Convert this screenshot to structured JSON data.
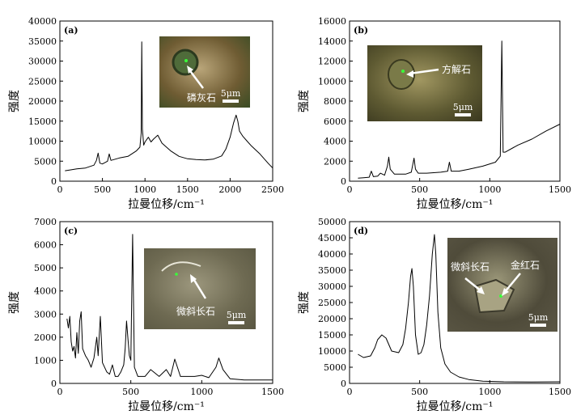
{
  "chart_data": [
    {
      "type": "line",
      "panel_label": "(a)",
      "xlabel": "拉曼位移/cm⁻¹",
      "ylabel": "强度",
      "xlim": [
        0,
        2500
      ],
      "ylim": [
        0,
        40000
      ],
      "xticks": [
        0,
        500,
        1000,
        1500,
        2000,
        2500
      ],
      "yticks": [
        0,
        5000,
        10000,
        15000,
        20000,
        25000,
        30000,
        35000,
        40000
      ],
      "inset": {
        "labels": [
          "磷灰石"
        ],
        "scale_bar": "5μm"
      },
      "x": [
        60,
        120,
        200,
        300,
        400,
        430,
        450,
        470,
        500,
        560,
        580,
        600,
        700,
        800,
        900,
        940,
        955,
        962,
        970,
        985,
        1000,
        1040,
        1070,
        1100,
        1150,
        1200,
        1300,
        1400,
        1500,
        1600,
        1700,
        1800,
        1900,
        1950,
        2000,
        2040,
        2070,
        2090,
        2110,
        2150,
        2200,
        2250,
        2300,
        2350,
        2400,
        2450,
        2500
      ],
      "y": [
        2600,
        2800,
        3100,
        3300,
        4000,
        5200,
        7000,
        4500,
        4300,
        5000,
        6800,
        5200,
        5800,
        6200,
        7600,
        8500,
        12000,
        34800,
        13000,
        9000,
        9800,
        11000,
        9800,
        10500,
        11500,
        9500,
        7600,
        6200,
        5600,
        5400,
        5300,
        5500,
        6300,
        8000,
        11000,
        14500,
        16500,
        15000,
        12500,
        11200,
        10000,
        8800,
        7800,
        6800,
        5600,
        4400,
        3300
      ]
    },
    {
      "type": "line",
      "panel_label": "(b)",
      "xlabel": "拉曼位移/cm⁻¹",
      "ylabel": "强度",
      "xlim": [
        0,
        1500
      ],
      "ylim": [
        0,
        16000
      ],
      "xticks": [
        0,
        500,
        1000,
        1500
      ],
      "yticks": [
        0,
        2000,
        4000,
        6000,
        8000,
        10000,
        12000,
        14000,
        16000
      ],
      "inset": {
        "labels": [
          "方解石"
        ],
        "scale_bar": "5μm"
      },
      "x": [
        60,
        100,
        140,
        155,
        170,
        200,
        220,
        250,
        270,
        280,
        290,
        320,
        400,
        440,
        460,
        470,
        490,
        550,
        650,
        700,
        712,
        725,
        780,
        850,
        950,
        1040,
        1075,
        1086,
        1095,
        1110,
        1200,
        1300,
        1400,
        1500
      ],
      "y": [
        300,
        350,
        400,
        1000,
        450,
        500,
        800,
        600,
        1500,
        2400,
        1200,
        700,
        700,
        900,
        2300,
        1200,
        800,
        800,
        900,
        1000,
        1900,
        1000,
        1000,
        1200,
        1500,
        1900,
        2500,
        14000,
        2900,
        2900,
        3600,
        4200,
        5000,
        5700
      ]
    },
    {
      "type": "line",
      "panel_label": "(c)",
      "xlabel": "拉曼位移/cm⁻¹",
      "ylabel": "强度",
      "xlim": [
        0,
        1500
      ],
      "ylim": [
        0,
        7000
      ],
      "xticks": [
        0,
        500,
        1000,
        1500
      ],
      "yticks": [
        0,
        1000,
        2000,
        3000,
        4000,
        5000,
        6000,
        7000
      ],
      "inset": {
        "labels": [
          "微斜长石"
        ],
        "scale_bar": "5μm"
      },
      "x": [
        50,
        60,
        70,
        80,
        90,
        100,
        110,
        120,
        130,
        140,
        150,
        160,
        180,
        200,
        220,
        240,
        260,
        270,
        285,
        300,
        330,
        350,
        370,
        390,
        410,
        430,
        450,
        460,
        470,
        480,
        490,
        500,
        513,
        525,
        550,
        600,
        640,
        700,
        750,
        780,
        810,
        850,
        950,
        1000,
        1050,
        1100,
        1120,
        1150,
        1200,
        1300,
        1400,
        1500
      ],
      "y": [
        2800,
        2400,
        2900,
        1800,
        1400,
        1600,
        1100,
        2200,
        1300,
        2700,
        3100,
        1500,
        1200,
        1000,
        700,
        1100,
        2000,
        1200,
        2900,
        900,
        500,
        400,
        800,
        300,
        300,
        500,
        800,
        1500,
        2700,
        1900,
        1200,
        1000,
        6450,
        700,
        300,
        300,
        600,
        300,
        600,
        300,
        1050,
        300,
        300,
        350,
        250,
        700,
        1100,
        600,
        200,
        150,
        150,
        150
      ]
    },
    {
      "type": "line",
      "panel_label": "(d)",
      "xlabel": "拉曼位移/cm⁻¹",
      "ylabel": "强度",
      "xlim": [
        0,
        1500
      ],
      "ylim": [
        0,
        50000
      ],
      "xticks": [
        0,
        500,
        1000,
        1500
      ],
      "yticks": [
        0,
        5000,
        10000,
        15000,
        20000,
        25000,
        30000,
        35000,
        40000,
        45000,
        50000
      ],
      "inset": {
        "labels": [
          "微斜长石",
          "金红石"
        ],
        "scale_bar": "5μm"
      },
      "x": [
        60,
        100,
        150,
        180,
        200,
        230,
        260,
        300,
        350,
        380,
        400,
        420,
        435,
        445,
        455,
        470,
        490,
        510,
        530,
        550,
        570,
        590,
        605,
        615,
        630,
        650,
        680,
        720,
        780,
        850,
        950,
        1100,
        1300,
        1500
      ],
      "y": [
        9000,
        8000,
        8500,
        11000,
        13500,
        15000,
        14000,
        10000,
        9500,
        12000,
        17000,
        25000,
        33000,
        35500,
        30000,
        15000,
        9000,
        9500,
        12000,
        18000,
        27000,
        40000,
        46000,
        40000,
        22000,
        11000,
        6000,
        3500,
        2000,
        1200,
        700,
        500,
        450,
        500
      ]
    }
  ]
}
